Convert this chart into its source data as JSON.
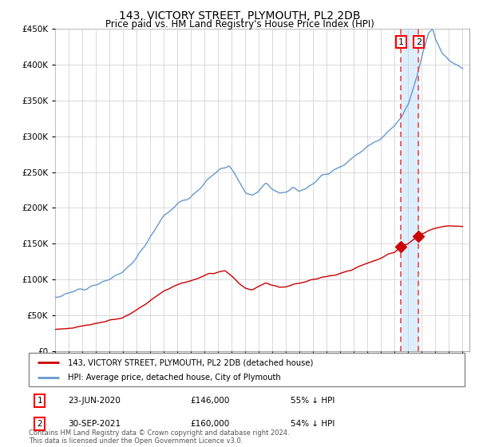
{
  "title": "143, VICTORY STREET, PLYMOUTH, PL2 2DB",
  "subtitle": "Price paid vs. HM Land Registry's House Price Index (HPI)",
  "ylim": [
    0,
    450000
  ],
  "yticks": [
    0,
    50000,
    100000,
    150000,
    200000,
    250000,
    300000,
    350000,
    400000,
    450000
  ],
  "x_start_year": 1995,
  "x_end_year": 2025,
  "transaction1_date": "23-JUN-2020",
  "transaction1_price": 146000,
  "transaction1_hpi": "55% ↓ HPI",
  "transaction2_date": "30-SEP-2021",
  "transaction2_price": 160000,
  "transaction2_hpi": "54% ↓ HPI",
  "transaction1_x": 2020.47,
  "transaction2_x": 2021.75,
  "legend1": "143, VICTORY STREET, PLYMOUTH, PL2 2DB (detached house)",
  "legend2": "HPI: Average price, detached house, City of Plymouth",
  "footer": "Contains HM Land Registry data © Crown copyright and database right 2024.\nThis data is licensed under the Open Government Licence v3.0.",
  "line_color_red": "#cc0000",
  "line_color_blue": "#6699cc",
  "shade_color": "#ddeeff",
  "background_color": "#ffffff",
  "grid_color": "#cccccc"
}
